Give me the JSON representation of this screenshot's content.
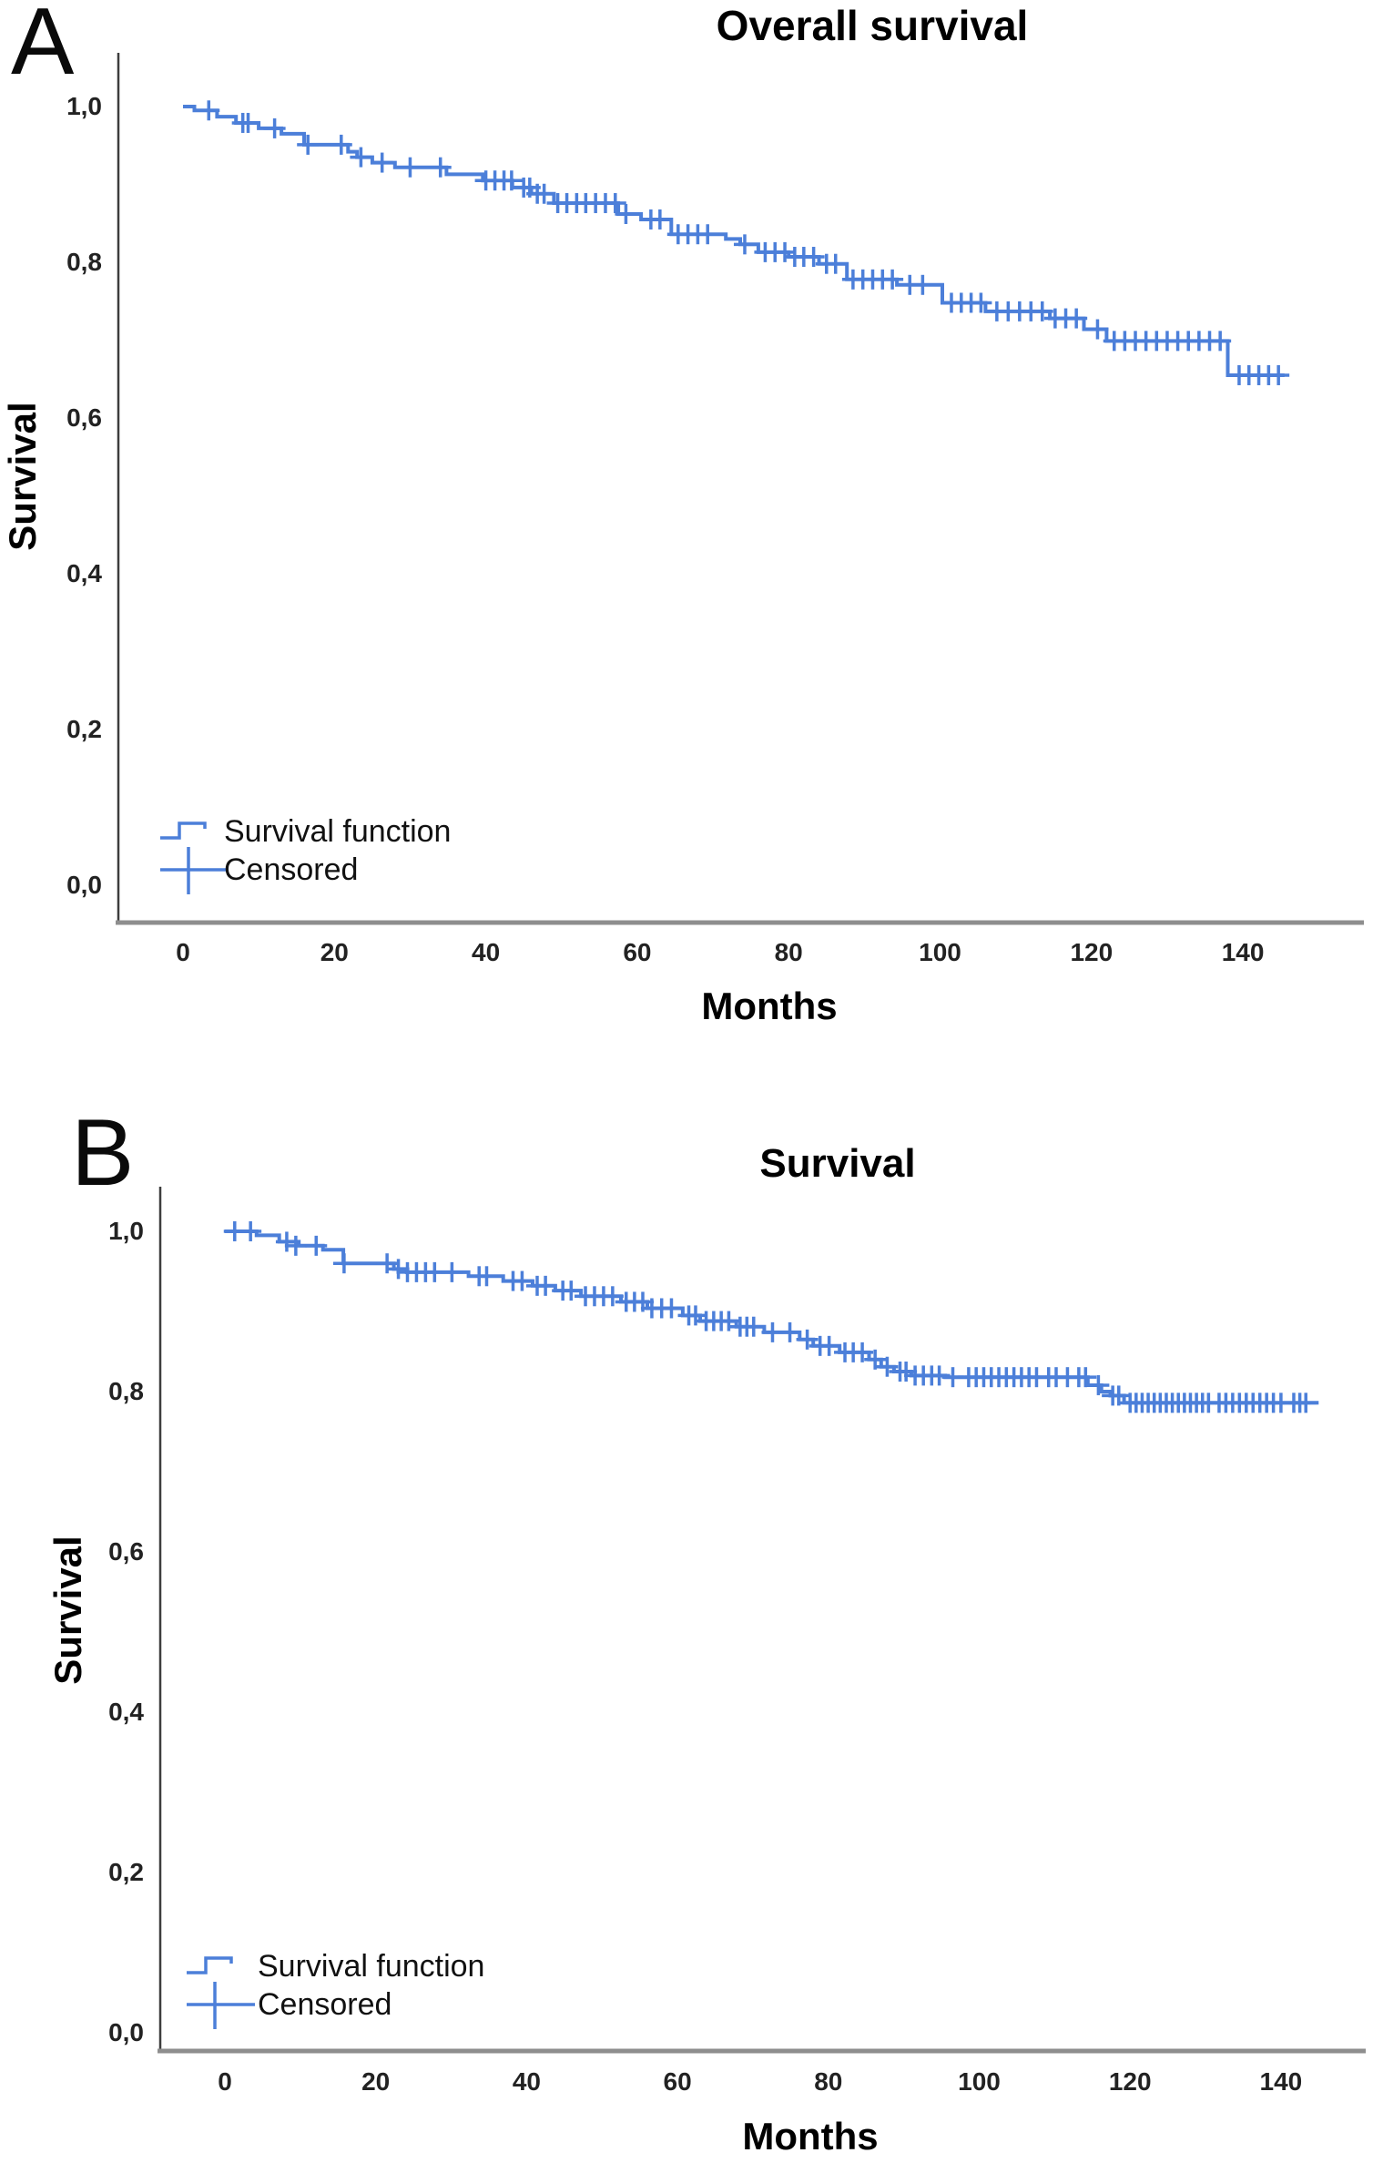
{
  "figure": {
    "panel_a_label": "A",
    "panel_b_label": "B"
  },
  "chart_data": [
    {
      "panel": "A",
      "type": "line",
      "subtype": "kaplan-meier-step",
      "title": "Overall survival",
      "xlabel": "Months",
      "ylabel": "Survival",
      "xlim": [
        0,
        155
      ],
      "ylim": [
        0.0,
        1.0
      ],
      "grid": false,
      "legend_position": "inside-bottom-left",
      "line_color": "#4c7fd9",
      "x_tick_values": [
        0,
        20,
        40,
        60,
        80,
        100,
        120,
        140
      ],
      "x_tick_labels": [
        "0",
        "20",
        "40",
        "60",
        "80",
        "100",
        "120",
        "140"
      ],
      "y_tick_values": [
        1.0,
        0.8,
        0.6,
        0.4,
        0.2,
        0.0
      ],
      "y_tick_labels": [
        "1,0",
        "0,8",
        "0,6",
        "0,4",
        "0,2",
        "0,0"
      ],
      "legend": [
        {
          "label": "Survival function",
          "marker": "step-line"
        },
        {
          "label": "Censored",
          "marker": "plus"
        }
      ],
      "end_time": 145.5,
      "steps": [
        [
          0,
          1.0
        ],
        [
          1.5,
          0.995
        ],
        [
          4.5,
          0.987
        ],
        [
          7,
          0.979
        ],
        [
          10,
          0.972
        ],
        [
          13,
          0.965
        ],
        [
          16,
          0.951
        ],
        [
          21.8,
          0.942
        ],
        [
          23,
          0.935
        ],
        [
          25,
          0.928
        ],
        [
          28,
          0.922
        ],
        [
          34.8,
          0.913
        ],
        [
          39.6,
          0.905
        ],
        [
          43.5,
          0.896
        ],
        [
          46,
          0.888
        ],
        [
          49,
          0.876
        ],
        [
          57.5,
          0.862
        ],
        [
          60.5,
          0.855
        ],
        [
          64.5,
          0.836
        ],
        [
          71.7,
          0.83
        ],
        [
          73.6,
          0.823
        ],
        [
          76,
          0.813
        ],
        [
          80,
          0.807
        ],
        [
          84,
          0.798
        ],
        [
          87.7,
          0.778
        ],
        [
          94.3,
          0.771
        ],
        [
          100.3,
          0.748
        ],
        [
          106,
          0.737
        ],
        [
          114.5,
          0.728
        ],
        [
          119,
          0.714
        ],
        [
          122,
          0.699
        ],
        [
          138,
          0.655
        ]
      ],
      "censored": [
        [
          3.4,
          0.995
        ],
        [
          7.9,
          0.979
        ],
        [
          8.6,
          0.979
        ],
        [
          12.1,
          0.972
        ],
        [
          16.5,
          0.951
        ],
        [
          20.9,
          0.951
        ],
        [
          23.5,
          0.935
        ],
        [
          26.3,
          0.928
        ],
        [
          30,
          0.922
        ],
        [
          34,
          0.922
        ],
        [
          40,
          0.905
        ],
        [
          41.2,
          0.905
        ],
        [
          42.4,
          0.905
        ],
        [
          43.4,
          0.905
        ],
        [
          45,
          0.896
        ],
        [
          45.8,
          0.896
        ],
        [
          46.8,
          0.888
        ],
        [
          47.7,
          0.888
        ],
        [
          49.5,
          0.876
        ],
        [
          50.7,
          0.876
        ],
        [
          52,
          0.876
        ],
        [
          53.2,
          0.876
        ],
        [
          54.5,
          0.876
        ],
        [
          55.8,
          0.876
        ],
        [
          57.1,
          0.876
        ],
        [
          58.5,
          0.862
        ],
        [
          61.8,
          0.855
        ],
        [
          63,
          0.855
        ],
        [
          65.4,
          0.836
        ],
        [
          66.7,
          0.836
        ],
        [
          68,
          0.836
        ],
        [
          69.3,
          0.836
        ],
        [
          74.2,
          0.823
        ],
        [
          76.9,
          0.813
        ],
        [
          78.2,
          0.813
        ],
        [
          79.5,
          0.813
        ],
        [
          80.8,
          0.807
        ],
        [
          82,
          0.807
        ],
        [
          83.3,
          0.807
        ],
        [
          85,
          0.798
        ],
        [
          86.2,
          0.798
        ],
        [
          88.5,
          0.778
        ],
        [
          89.8,
          0.778
        ],
        [
          91.1,
          0.778
        ],
        [
          92.4,
          0.778
        ],
        [
          93.7,
          0.778
        ],
        [
          96,
          0.771
        ],
        [
          97.7,
          0.771
        ],
        [
          101.5,
          0.748
        ],
        [
          102.8,
          0.748
        ],
        [
          104.1,
          0.748
        ],
        [
          105.4,
          0.748
        ],
        [
          107.5,
          0.737
        ],
        [
          109,
          0.737
        ],
        [
          110.5,
          0.737
        ],
        [
          112,
          0.737
        ],
        [
          113.5,
          0.737
        ],
        [
          115.2,
          0.728
        ],
        [
          116.6,
          0.728
        ],
        [
          118,
          0.728
        ],
        [
          120.8,
          0.714
        ],
        [
          123,
          0.699
        ],
        [
          124.4,
          0.699
        ],
        [
          125.8,
          0.699
        ],
        [
          127.2,
          0.699
        ],
        [
          128.6,
          0.699
        ],
        [
          130,
          0.699
        ],
        [
          131.4,
          0.699
        ],
        [
          132.8,
          0.699
        ],
        [
          134.2,
          0.699
        ],
        [
          135.6,
          0.699
        ],
        [
          137,
          0.699
        ],
        [
          139.5,
          0.655
        ],
        [
          140.8,
          0.655
        ],
        [
          142.1,
          0.655
        ],
        [
          143.4,
          0.655
        ],
        [
          144.7,
          0.655
        ]
      ]
    },
    {
      "panel": "B",
      "type": "line",
      "subtype": "kaplan-meier-step",
      "title": "Survival",
      "xlabel": "Months",
      "ylabel": "Survival",
      "xlim": [
        0,
        155
      ],
      "ylim": [
        0.0,
        1.0
      ],
      "grid": false,
      "legend_position": "inside-bottom-left",
      "line_color": "#4c7fd9",
      "x_tick_values": [
        0,
        20,
        40,
        60,
        80,
        100,
        120,
        140
      ],
      "x_tick_labels": [
        "0",
        "20",
        "40",
        "60",
        "80",
        "100",
        "120",
        "140"
      ],
      "y_tick_values": [
        1.0,
        0.8,
        0.6,
        0.4,
        0.2,
        0.0
      ],
      "y_tick_labels": [
        "1,0",
        "0,8",
        "0,6",
        "0,4",
        "0,2",
        "0,0"
      ],
      "legend": [
        {
          "label": "Survival function",
          "marker": "step-line"
        },
        {
          "label": "Censored",
          "marker": "plus"
        }
      ],
      "end_time": 145,
      "steps": [
        [
          0,
          1.0
        ],
        [
          4.2,
          0.995
        ],
        [
          7.2,
          0.987
        ],
        [
          9.8,
          0.982
        ],
        [
          13,
          0.977
        ],
        [
          15.7,
          0.96
        ],
        [
          22.4,
          0.953
        ],
        [
          24.1,
          0.949
        ],
        [
          32.3,
          0.944
        ],
        [
          36.9,
          0.938
        ],
        [
          40.8,
          0.932
        ],
        [
          43.8,
          0.926
        ],
        [
          47.2,
          0.919
        ],
        [
          52.5,
          0.912
        ],
        [
          56,
          0.904
        ],
        [
          60.7,
          0.895
        ],
        [
          63,
          0.888
        ],
        [
          67.8,
          0.881
        ],
        [
          71.5,
          0.874
        ],
        [
          76.2,
          0.865
        ],
        [
          78,
          0.857
        ],
        [
          81.5,
          0.849
        ],
        [
          85.4,
          0.84
        ],
        [
          87,
          0.831
        ],
        [
          88.7,
          0.825
        ],
        [
          91,
          0.82
        ],
        [
          95.5,
          0.818
        ],
        [
          114.4,
          0.808
        ],
        [
          116.2,
          0.8
        ],
        [
          117.4,
          0.795
        ],
        [
          119.2,
          0.786
        ]
      ],
      "censored": [
        [
          1.3,
          1.0
        ],
        [
          3.4,
          1.0
        ],
        [
          8.2,
          0.987
        ],
        [
          9.4,
          0.982
        ],
        [
          12.1,
          0.982
        ],
        [
          15.8,
          0.96
        ],
        [
          21.5,
          0.96
        ],
        [
          23,
          0.953
        ],
        [
          24.2,
          0.949
        ],
        [
          25.4,
          0.949
        ],
        [
          26.6,
          0.949
        ],
        [
          27.8,
          0.949
        ],
        [
          30.1,
          0.949
        ],
        [
          33.7,
          0.944
        ],
        [
          34.7,
          0.944
        ],
        [
          38.2,
          0.938
        ],
        [
          39.4,
          0.938
        ],
        [
          41.4,
          0.932
        ],
        [
          42.5,
          0.932
        ],
        [
          44.8,
          0.926
        ],
        [
          45.9,
          0.926
        ],
        [
          47.8,
          0.919
        ],
        [
          49,
          0.919
        ],
        [
          50.2,
          0.919
        ],
        [
          51.4,
          0.919
        ],
        [
          53.2,
          0.912
        ],
        [
          54.3,
          0.912
        ],
        [
          55.4,
          0.912
        ],
        [
          56.6,
          0.904
        ],
        [
          57.9,
          0.904
        ],
        [
          59.2,
          0.904
        ],
        [
          61.5,
          0.895
        ],
        [
          62.4,
          0.895
        ],
        [
          63.8,
          0.888
        ],
        [
          64.8,
          0.888
        ],
        [
          65.8,
          0.888
        ],
        [
          66.8,
          0.888
        ],
        [
          68.3,
          0.881
        ],
        [
          69.2,
          0.881
        ],
        [
          70.1,
          0.881
        ],
        [
          72.6,
          0.874
        ],
        [
          74.9,
          0.874
        ],
        [
          77.2,
          0.865
        ],
        [
          78.9,
          0.857
        ],
        [
          80.1,
          0.857
        ],
        [
          82.2,
          0.849
        ],
        [
          83.3,
          0.849
        ],
        [
          84.5,
          0.849
        ],
        [
          86.2,
          0.84
        ],
        [
          87.8,
          0.831
        ],
        [
          89.5,
          0.825
        ],
        [
          90.3,
          0.825
        ],
        [
          91.5,
          0.82
        ],
        [
          92.6,
          0.82
        ],
        [
          93.7,
          0.82
        ],
        [
          94.7,
          0.82
        ],
        [
          96.5,
          0.818
        ],
        [
          98.6,
          0.818
        ],
        [
          99.6,
          0.818
        ],
        [
          100.6,
          0.818
        ],
        [
          101.6,
          0.818
        ],
        [
          102.6,
          0.818
        ],
        [
          103.6,
          0.818
        ],
        [
          104.6,
          0.818
        ],
        [
          105.6,
          0.818
        ],
        [
          106.6,
          0.818
        ],
        [
          107.6,
          0.818
        ],
        [
          109.2,
          0.818
        ],
        [
          110.2,
          0.818
        ],
        [
          111.7,
          0.818
        ],
        [
          113.2,
          0.818
        ],
        [
          114.1,
          0.818
        ],
        [
          115.8,
          0.808
        ],
        [
          117.7,
          0.795
        ],
        [
          118.5,
          0.795
        ],
        [
          120,
          0.786
        ],
        [
          120.8,
          0.786
        ],
        [
          121.6,
          0.786
        ],
        [
          122.4,
          0.786
        ],
        [
          123.2,
          0.786
        ],
        [
          124,
          0.786
        ],
        [
          124.8,
          0.786
        ],
        [
          125.6,
          0.786
        ],
        [
          126.4,
          0.786
        ],
        [
          127.2,
          0.786
        ],
        [
          128,
          0.786
        ],
        [
          128.8,
          0.786
        ],
        [
          129.6,
          0.786
        ],
        [
          130.4,
          0.786
        ],
        [
          131.8,
          0.786
        ],
        [
          132.7,
          0.786
        ],
        [
          133.6,
          0.786
        ],
        [
          134.5,
          0.786
        ],
        [
          135.4,
          0.786
        ],
        [
          136.3,
          0.786
        ],
        [
          137.2,
          0.786
        ],
        [
          138.1,
          0.786
        ],
        [
          139,
          0.786
        ],
        [
          140,
          0.786
        ],
        [
          141.7,
          0.786
        ],
        [
          142.5,
          0.786
        ],
        [
          143.3,
          0.786
        ]
      ]
    }
  ]
}
